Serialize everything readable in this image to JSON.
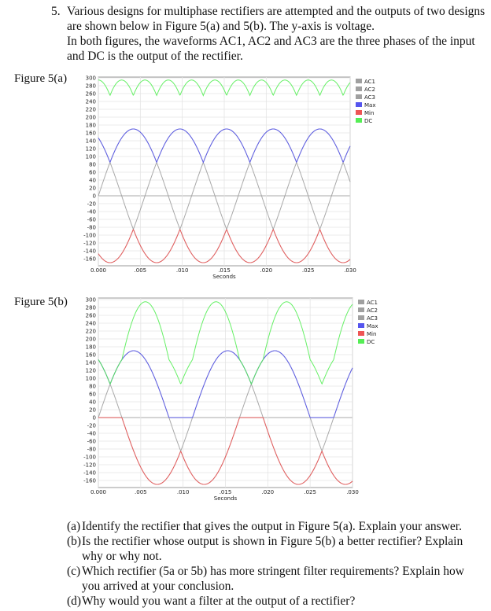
{
  "question": {
    "number": "5.",
    "lines": [
      "Various designs for multiphase rectifiers are attempted and the outputs of two designs",
      "are shown below in Figure 5(a) and 5(b). The y-axis is voltage.",
      "In both figures, the waveforms AC1, AC2 and AC3 are the three phases of the input",
      "and DC is the output of the rectifier."
    ]
  },
  "figures": [
    {
      "label": "Figure 5(a)"
    },
    {
      "label": "Figure 5(b)"
    }
  ],
  "parts": [
    {
      "tag": "(a)",
      "lines": [
        "Identify the rectifier that gives the output in Figure 5(a). Explain your answer."
      ]
    },
    {
      "tag": "(b)",
      "lines": [
        "Is the rectifier whose output is shown in Figure 5(b) a better rectifier? Explain",
        "why or why not."
      ]
    },
    {
      "tag": "(c)",
      "lines": [
        "Which rectifier (5a or 5b) has more stringent filter requirements? Explain how",
        "you arrived at your conclusion."
      ]
    },
    {
      "tag": "(d)",
      "lines": [
        "Why would you want a filter at the output of a rectifier?"
      ]
    }
  ],
  "chart_data": [
    {
      "type": "line",
      "xlabel": "Seconds",
      "ylabel": "",
      "xlim": [
        0,
        0.03
      ],
      "ylim": [
        -178,
        302
      ],
      "xticks": [
        "0.000",
        ".005",
        ".010",
        ".015",
        ".020",
        ".025",
        ".030"
      ],
      "yticks": [
        300,
        280,
        260,
        240,
        220,
        200,
        180,
        160,
        140,
        120,
        100,
        80,
        60,
        40,
        20,
        0,
        -20,
        -40,
        -60,
        -80,
        -100,
        -120,
        -140,
        -160
      ],
      "grid": true,
      "legend_position": "right",
      "amplitude": 170,
      "frequency_hz": 60,
      "phases_deg": {
        "AC1": 0,
        "AC2": 120,
        "AC3": -120
      },
      "max_min_include_zero": false,
      "series": [
        {
          "name": "AC1",
          "color": "#a0a0a0",
          "definition": "170·sin(2π·60·t)"
        },
        {
          "name": "AC2",
          "color": "#a0a0a0",
          "definition": "170·sin(2π·60·t + 120°)"
        },
        {
          "name": "AC3",
          "color": "#a0a0a0",
          "definition": "170·sin(2π·60·t − 120°)"
        },
        {
          "name": "Max",
          "color": "#5555ee",
          "definition": "max(AC1, AC2, AC3)"
        },
        {
          "name": "Min",
          "color": "#ee5555",
          "definition": "min(AC1, AC2, AC3)"
        },
        {
          "name": "DC",
          "color": "#55ee55",
          "definition": "Max − Min"
        }
      ]
    },
    {
      "type": "line",
      "xlabel": "Seconds",
      "ylabel": "",
      "xlim": [
        0,
        0.03
      ],
      "ylim": [
        -178,
        304
      ],
      "xticks": [
        "0.000",
        ".005",
        ".010",
        ".015",
        ".020",
        ".025",
        ".030"
      ],
      "yticks": [
        300,
        280,
        260,
        240,
        220,
        200,
        180,
        160,
        140,
        120,
        100,
        80,
        60,
        40,
        20,
        0,
        -20,
        -40,
        -60,
        -80,
        -100,
        -120,
        -140,
        -160
      ],
      "grid": true,
      "legend_position": "right",
      "amplitude": 170,
      "frequency_hz": 60,
      "phases_deg": {
        "AC1": 0,
        "AC2": 120
      },
      "max_min_include_zero": true,
      "series": [
        {
          "name": "AC1",
          "color": "#a0a0a0",
          "definition": "170·sin(2π·60·t)"
        },
        {
          "name": "AC2",
          "color": "#a0a0a0",
          "definition": "170·sin(2π·60·t + 120°)"
        },
        {
          "name": "AC3",
          "color": "#a0a0a0",
          "definition": "not plotted"
        },
        {
          "name": "Max",
          "color": "#5555ee",
          "definition": "max(AC1, AC2, 0)"
        },
        {
          "name": "Min",
          "color": "#ee5555",
          "definition": "min(AC1, AC2, 0)"
        },
        {
          "name": "DC",
          "color": "#55ee55",
          "definition": "Max − Min"
        }
      ]
    }
  ]
}
